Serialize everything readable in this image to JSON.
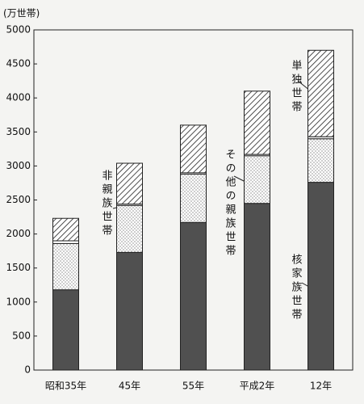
{
  "chart_data": {
    "type": "stacked_bar",
    "ylabel": "(万世帯)",
    "categories": [
      "昭和35年",
      "45年",
      "55年",
      "平成2年",
      "12年"
    ],
    "series": [
      {
        "name": "核家族世帯",
        "color": "#505050",
        "fill": "solid",
        "values": [
          1180,
          1730,
          2170,
          2450,
          2760
        ]
      },
      {
        "name": "その他の親族世帯",
        "color": "#ffffff",
        "fill": "dots",
        "values": [
          680,
          690,
          710,
          700,
          640
        ]
      },
      {
        "name": "非親族世帯",
        "color": "#ffffff",
        "fill": "solid",
        "values": [
          40,
          20,
          20,
          20,
          30
        ]
      },
      {
        "name": "単独世帯",
        "color": "#ffffff",
        "fill": "hatch",
        "values": [
          330,
          600,
          700,
          930,
          1270
        ]
      }
    ],
    "ylim": [
      0,
      5000
    ],
    "yticks": [
      0,
      500,
      1000,
      1500,
      2000,
      2500,
      3000,
      3500,
      4000,
      4500,
      5000
    ],
    "grid": false
  }
}
